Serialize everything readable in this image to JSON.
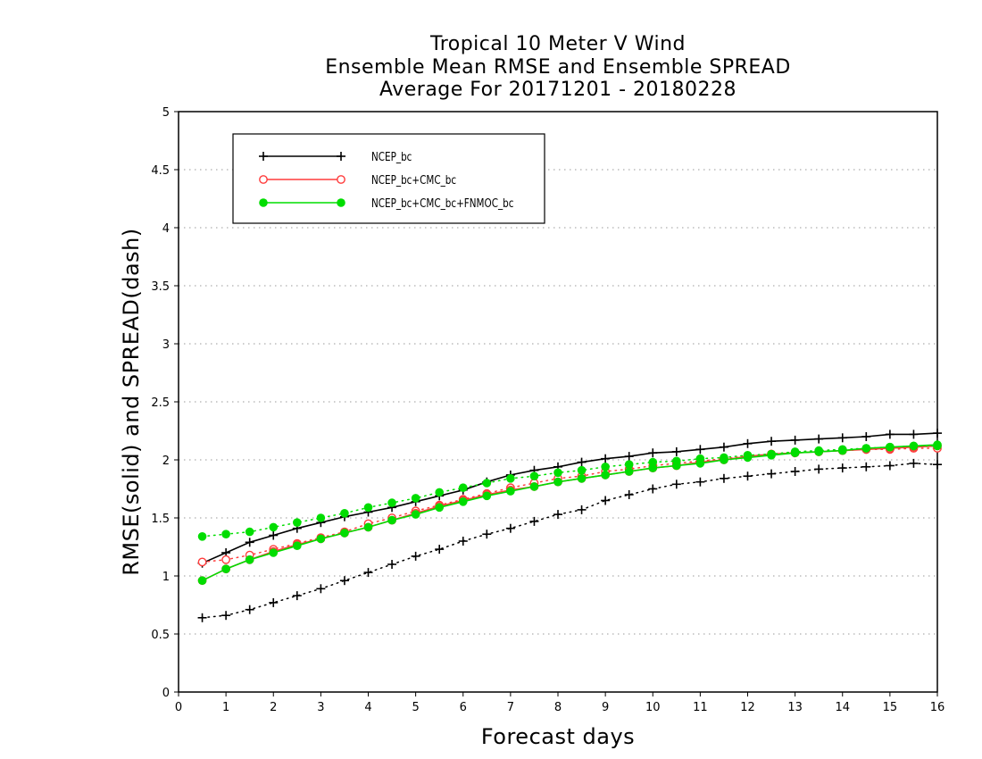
{
  "chart_data": {
    "type": "line",
    "title_lines": [
      "Tropical 10 Meter V Wind",
      "Ensemble Mean RMSE and Ensemble SPREAD",
      "Average For 20171201 - 20180228"
    ],
    "xlabel": "Forecast days",
    "ylabel": "RMSE(solid) and SPREAD(dash)",
    "xlim": [
      0,
      16
    ],
    "ylim": [
      0,
      5
    ],
    "x_ticks": [
      0,
      1,
      2,
      3,
      4,
      5,
      6,
      7,
      8,
      9,
      10,
      11,
      12,
      13,
      14,
      15,
      16
    ],
    "x_tick_labels": [
      "0",
      "1",
      "2",
      "3",
      "4",
      "5",
      "6",
      "7",
      "8",
      "9",
      "10",
      "11",
      "12",
      "13",
      "14",
      "15",
      "16"
    ],
    "y_ticks": [
      0,
      0.5,
      1,
      1.5,
      2,
      2.5,
      3,
      3.5,
      4,
      4.5,
      5
    ],
    "y_tick_labels": [
      "0",
      "0.5",
      "1",
      "1.5",
      "2",
      "2.5",
      "3",
      "3.5",
      "4",
      "4.5",
      "5"
    ],
    "grid": true,
    "legend_position": "top-left",
    "x": [
      0.5,
      1,
      1.5,
      2,
      2.5,
      3,
      3.5,
      4,
      4.5,
      5,
      5.5,
      6,
      6.5,
      7,
      7.5,
      8,
      8.5,
      9,
      9.5,
      10,
      10.5,
      11,
      11.5,
      12,
      12.5,
      13,
      13.5,
      14,
      14.5,
      15,
      15.5,
      16
    ],
    "series": [
      {
        "name": "NCEP_bc",
        "color": "#000000",
        "marker": "plus",
        "rmse": [
          1.11,
          1.2,
          1.29,
          1.35,
          1.41,
          1.46,
          1.51,
          1.55,
          1.59,
          1.64,
          1.69,
          1.74,
          1.81,
          1.87,
          1.91,
          1.94,
          1.98,
          2.01,
          2.03,
          2.06,
          2.07,
          2.09,
          2.11,
          2.14,
          2.16,
          2.17,
          2.18,
          2.19,
          2.2,
          2.22,
          2.22,
          2.23
        ],
        "spread": [
          0.64,
          0.66,
          0.71,
          0.77,
          0.83,
          0.89,
          0.96,
          1.03,
          1.1,
          1.17,
          1.23,
          1.3,
          1.36,
          1.41,
          1.47,
          1.53,
          1.57,
          1.65,
          1.7,
          1.75,
          1.79,
          1.81,
          1.84,
          1.86,
          1.88,
          1.9,
          1.92,
          1.93,
          1.94,
          1.95,
          1.97,
          1.96
        ]
      },
      {
        "name": "NCEP_bc+CMC_bc",
        "color": "#ff3b3b",
        "marker": "open-circle",
        "rmse": [
          0.96,
          1.06,
          1.14,
          1.21,
          1.27,
          1.32,
          1.37,
          1.42,
          1.48,
          1.54,
          1.6,
          1.65,
          1.7,
          1.74,
          1.77,
          1.81,
          1.84,
          1.87,
          1.9,
          1.93,
          1.95,
          1.98,
          2.0,
          2.03,
          2.05,
          2.06,
          2.07,
          2.08,
          2.09,
          2.1,
          2.11,
          2.12
        ],
        "spread": [
          1.12,
          1.14,
          1.18,
          1.23,
          1.28,
          1.33,
          1.38,
          1.45,
          1.5,
          1.56,
          1.61,
          1.66,
          1.71,
          1.76,
          1.8,
          1.84,
          1.86,
          1.9,
          1.92,
          1.95,
          1.97,
          1.99,
          2.01,
          2.03,
          2.05,
          2.06,
          2.07,
          2.08,
          2.09,
          2.09,
          2.1,
          2.1
        ]
      },
      {
        "name": "NCEP_bc+CMC_bc+FNMOC_bc",
        "color": "#00dd00",
        "marker": "filled-circle",
        "rmse": [
          0.96,
          1.06,
          1.14,
          1.2,
          1.26,
          1.32,
          1.37,
          1.42,
          1.48,
          1.53,
          1.59,
          1.64,
          1.69,
          1.73,
          1.77,
          1.81,
          1.84,
          1.87,
          1.9,
          1.93,
          1.95,
          1.97,
          2.0,
          2.02,
          2.04,
          2.06,
          2.07,
          2.08,
          2.1,
          2.11,
          2.12,
          2.13
        ],
        "spread": [
          1.34,
          1.36,
          1.38,
          1.42,
          1.46,
          1.5,
          1.54,
          1.59,
          1.63,
          1.67,
          1.72,
          1.76,
          1.8,
          1.84,
          1.86,
          1.89,
          1.91,
          1.94,
          1.96,
          1.98,
          1.99,
          2.01,
          2.02,
          2.04,
          2.05,
          2.07,
          2.08,
          2.09,
          2.1,
          2.11,
          2.12,
          2.12
        ]
      }
    ]
  }
}
